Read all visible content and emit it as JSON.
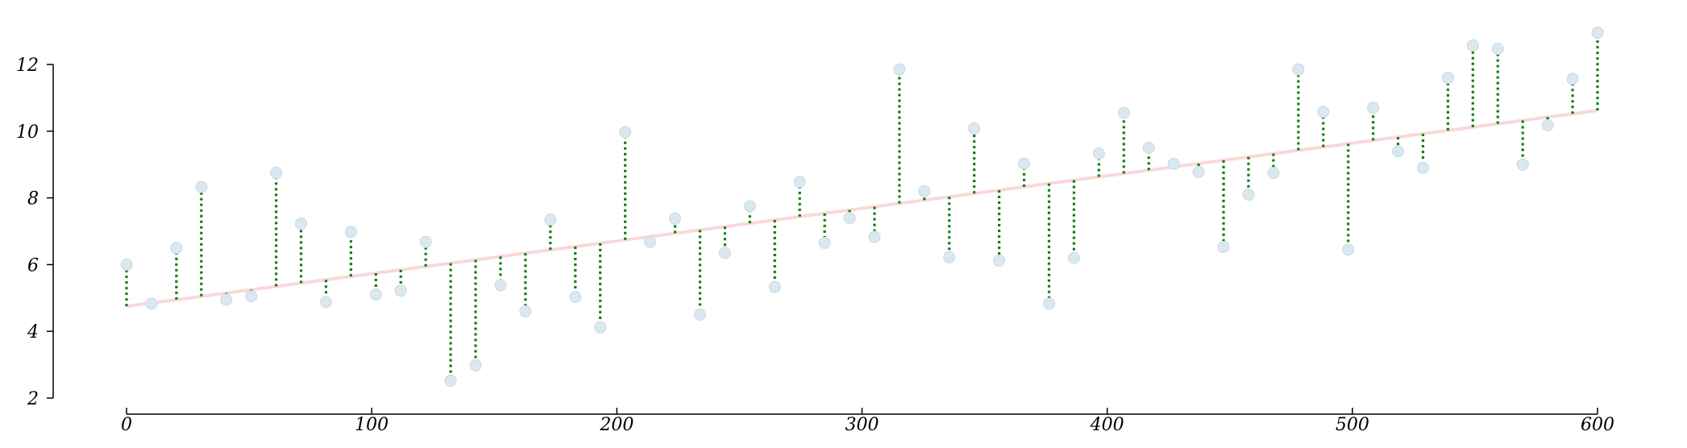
{
  "chart_data": {
    "type": "scatter",
    "title": "",
    "xlabel": "",
    "ylabel": "",
    "xlim": [
      0,
      600
    ],
    "ylim": [
      2,
      13
    ],
    "x_ticks": [
      0,
      100,
      200,
      300,
      400,
      500,
      600
    ],
    "y_ticks": [
      2,
      4,
      6,
      8,
      10,
      12
    ],
    "x_tick_labels": [
      "0",
      "100",
      "200",
      "300",
      "400",
      "500",
      "600"
    ],
    "y_tick_labels": [
      "2",
      "4",
      "6",
      "8",
      "10",
      "12"
    ],
    "grid": false,
    "legend": "none",
    "fit_line": {
      "x": [
        0,
        600
      ],
      "y": [
        4.75,
        10.62
      ]
    },
    "series": [
      {
        "x": [
          0,
          10.17,
          20.34,
          30.51,
          40.68,
          50.85,
          61.02,
          71.19,
          81.36,
          91.53,
          101.69,
          111.86,
          122.03,
          132.2,
          142.37,
          152.54,
          162.71,
          172.88,
          183.05,
          193.22,
          203.39,
          213.56,
          223.73,
          233.9,
          244.07,
          254.24,
          264.41,
          274.58,
          284.75,
          294.92,
          305.08,
          315.25,
          325.42,
          335.59,
          345.76,
          355.93,
          366.1,
          376.27,
          386.44,
          396.61,
          406.78,
          416.95,
          427.12,
          437.29,
          447.46,
          457.63,
          467.8,
          477.97,
          488.14,
          498.31,
          508.47,
          518.64,
          528.81,
          538.98,
          549.15,
          559.32,
          569.49,
          579.66,
          589.83,
          600
        ],
        "y": [
          6.0,
          4.83,
          6.5,
          8.33,
          4.95,
          5.05,
          8.75,
          7.23,
          4.88,
          6.98,
          5.1,
          5.22,
          6.68,
          2.52,
          2.98,
          5.38,
          4.6,
          7.35,
          5.03,
          4.12,
          9.97,
          6.68,
          7.38,
          4.5,
          6.35,
          7.75,
          5.33,
          8.48,
          6.65,
          7.4,
          6.83,
          11.85,
          8.2,
          6.22,
          10.08,
          6.12,
          9.03,
          4.83,
          6.2,
          9.33,
          10.55,
          9.5,
          9.02,
          8.78,
          6.53,
          8.1,
          8.75,
          11.85,
          10.58,
          6.45,
          10.7,
          9.4,
          8.9,
          11.6,
          12.57,
          12.47,
          9.0,
          10.18,
          11.57,
          12.95
        ]
      }
    ]
  }
}
